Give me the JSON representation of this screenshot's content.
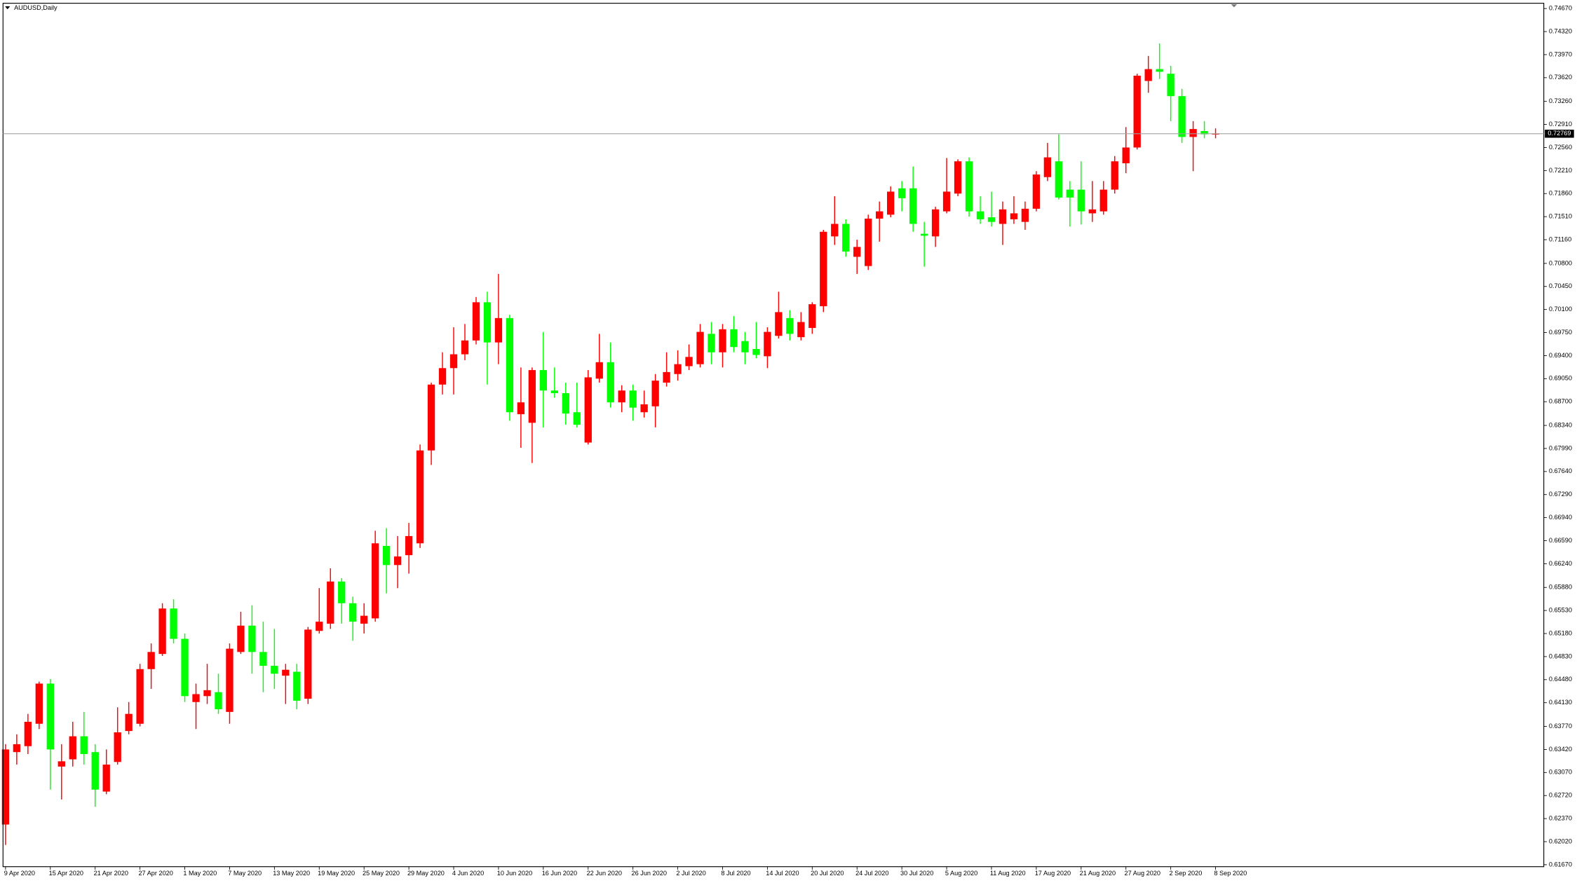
{
  "chart_data": {
    "type": "candlestick",
    "title": "AUDUSD,Daily",
    "up_color": "#ff0000",
    "down_color": "#00ff00",
    "categories": [
      "9 Apr 2020",
      null,
      null,
      null,
      "15 Apr 2020",
      null,
      null,
      null,
      "21 Apr 2020",
      null,
      null,
      null,
      "27 Apr 2020",
      null,
      null,
      null,
      "1 May 2020",
      null,
      null,
      null,
      "7 May 2020",
      null,
      null,
      null,
      "13 May 2020",
      null,
      null,
      null,
      "19 May 2020",
      null,
      null,
      null,
      "25 May 2020",
      null,
      null,
      null,
      "29 May 2020",
      null,
      null,
      null,
      "4 Jun 2020",
      null,
      null,
      null,
      "10 Jun 2020",
      null,
      null,
      null,
      "16 Jun 2020",
      null,
      null,
      null,
      "22 Jun 2020",
      null,
      null,
      null,
      "26 Jun 2020",
      null,
      null,
      null,
      "2 Jul 2020",
      null,
      null,
      null,
      "8 Jul 2020",
      null,
      null,
      null,
      "14 Jul 2020",
      null,
      null,
      null,
      "20 Jul 2020",
      null,
      null,
      null,
      "24 Jul 2020",
      null,
      null,
      null,
      "30 Jul 2020",
      null,
      null,
      null,
      "5 Aug 2020",
      null,
      null,
      null,
      "11 Aug 2020",
      null,
      null,
      null,
      "17 Aug 2020",
      null,
      null,
      null,
      "21 Aug 2020",
      null,
      null,
      null,
      "27 Aug 2020",
      null,
      null,
      null,
      "2 Sep 2020",
      null,
      null,
      null,
      "8 Sep 2020"
    ],
    "open": [
      0.6228,
      0.6338,
      0.6347,
      0.6381,
      0.6442,
      0.6316,
      0.6327,
      0.6362,
      0.6338,
      0.6278,
      0.6323,
      0.637,
      0.6381,
      0.6464,
      0.6487,
      0.6556,
      0.651,
      0.6414,
      0.6423,
      0.6429,
      0.6399,
      0.649,
      0.653,
      0.649,
      0.6469,
      0.6454,
      0.646,
      0.6419,
      0.6522,
      0.6533,
      0.6597,
      0.6564,
      0.6533,
      0.6541,
      0.6651,
      0.6622,
      0.6637,
      0.6655,
      0.6796,
      0.6896,
      0.6921,
      0.6942,
      0.6963,
      0.7021,
      0.696,
      0.6997,
      0.6851,
      0.6838,
      0.6918,
      0.6887,
      0.6883,
      0.6854,
      0.6808,
      0.6905,
      0.693,
      0.6869,
      0.6887,
      0.6854,
      0.6863,
      0.6899,
      0.6912,
      0.6924,
      0.6927,
      0.6973,
      0.6945,
      0.698,
      0.6962,
      0.695,
      0.6939,
      0.697,
      0.6997,
      0.6968,
      0.6982,
      0.7015,
      0.7121,
      0.714,
      0.709,
      0.7076,
      0.7148,
      0.7154,
      0.7194,
      0.7194,
      0.7125,
      0.7121,
      0.7159,
      0.7186,
      0.7235,
      0.7159,
      0.715,
      0.714,
      0.7147,
      0.7143,
      0.7163,
      0.7211,
      0.7235,
      0.7192,
      0.7192,
      0.7156,
      0.7159,
      0.7192,
      0.7232,
      0.7256,
      0.7357,
      0.7375,
      0.7368,
      0.7334,
      0.7272,
      0.7281,
      0.7276
    ],
    "high": [
      0.635,
      0.6365,
      0.6396,
      0.6445,
      0.6449,
      0.635,
      0.6384,
      0.6399,
      0.635,
      0.6342,
      0.6406,
      0.6414,
      0.6472,
      0.6503,
      0.6564,
      0.657,
      0.6518,
      0.6442,
      0.6472,
      0.6457,
      0.6503,
      0.6551,
      0.6561,
      0.6536,
      0.6525,
      0.6472,
      0.6472,
      0.6528,
      0.6587,
      0.6617,
      0.6602,
      0.6574,
      0.6564,
      0.6674,
      0.6678,
      0.6666,
      0.6686,
      0.6805,
      0.6899,
      0.6945,
      0.6983,
      0.6988,
      0.7029,
      0.7037,
      0.7064,
      0.7002,
      0.6922,
      0.6922,
      0.6976,
      0.6922,
      0.6899,
      0.6899,
      0.6918,
      0.6973,
      0.696,
      0.6895,
      0.6896,
      0.6887,
      0.6912,
      0.6945,
      0.6948,
      0.6957,
      0.6988,
      0.6991,
      0.6988,
      0.7,
      0.6976,
      0.6991,
      0.6983,
      0.7037,
      0.7009,
      0.7006,
      0.7021,
      0.7131,
      0.7182,
      0.7147,
      0.7116,
      0.7154,
      0.7174,
      0.7197,
      0.7205,
      0.7227,
      0.7143,
      0.7166,
      0.724,
      0.7238,
      0.7241,
      0.7182,
      0.7189,
      0.7174,
      0.7182,
      0.7174,
      0.722,
      0.7263,
      0.7276,
      0.7205,
      0.7235,
      0.7205,
      0.7205,
      0.7243,
      0.7287,
      0.7368,
      0.7395,
      0.7414,
      0.738,
      0.7345,
      0.7296,
      0.7296,
      0.7285
    ],
    "low": [
      0.6197,
      0.6319,
      0.6335,
      0.6373,
      0.6281,
      0.6266,
      0.6316,
      0.6319,
      0.6255,
      0.6274,
      0.6319,
      0.6365,
      0.6377,
      0.6434,
      0.6484,
      0.6503,
      0.6414,
      0.6373,
      0.6411,
      0.6396,
      0.6381,
      0.6487,
      0.6457,
      0.6429,
      0.6434,
      0.6411,
      0.6403,
      0.6411,
      0.6518,
      0.6525,
      0.6533,
      0.6507,
      0.6518,
      0.6536,
      0.6579,
      0.6587,
      0.6609,
      0.6648,
      0.6774,
      0.6881,
      0.6881,
      0.6933,
      0.6957,
      0.6896,
      0.6927,
      0.6841,
      0.68,
      0.6777,
      0.6831,
      0.6876,
      0.6835,
      0.6831,
      0.6805,
      0.6899,
      0.6861,
      0.6854,
      0.6841,
      0.6846,
      0.6831,
      0.6893,
      0.6902,
      0.6918,
      0.6922,
      0.6927,
      0.6922,
      0.6945,
      0.6927,
      0.6936,
      0.6921,
      0.6966,
      0.6963,
      0.6963,
      0.6973,
      0.7006,
      0.7108,
      0.709,
      0.7064,
      0.707,
      0.7113,
      0.715,
      0.7159,
      0.7128,
      0.7075,
      0.7105,
      0.7156,
      0.7182,
      0.7151,
      0.714,
      0.7136,
      0.7108,
      0.714,
      0.7131,
      0.7159,
      0.7205,
      0.7177,
      0.7136,
      0.7139,
      0.7143,
      0.7154,
      0.7186,
      0.7217,
      0.7253,
      0.7339,
      0.736,
      0.7296,
      0.7263,
      0.722,
      0.727,
      0.727
    ],
    "close": [
      0.6342,
      0.635,
      0.6384,
      0.6442,
      0.6342,
      0.6324,
      0.6362,
      0.6335,
      0.6281,
      0.6319,
      0.6368,
      0.6396,
      0.6464,
      0.649,
      0.6556,
      0.651,
      0.6423,
      0.6426,
      0.6432,
      0.6403,
      0.6495,
      0.653,
      0.649,
      0.6469,
      0.6457,
      0.6463,
      0.6416,
      0.6524,
      0.6536,
      0.6597,
      0.6564,
      0.6536,
      0.6545,
      0.6655,
      0.6622,
      0.6635,
      0.6666,
      0.6796,
      0.6896,
      0.6921,
      0.6942,
      0.6963,
      0.7021,
      0.696,
      0.6997,
      0.6854,
      0.6869,
      0.6918,
      0.6887,
      0.6883,
      0.6852,
      0.6835,
      0.6907,
      0.693,
      0.6869,
      0.6887,
      0.6861,
      0.6866,
      0.6902,
      0.6915,
      0.6927,
      0.6938,
      0.6976,
      0.6945,
      0.698,
      0.6953,
      0.6945,
      0.6941,
      0.6976,
      0.7006,
      0.6973,
      0.6991,
      0.7018,
      0.7128,
      0.714,
      0.7098,
      0.7105,
      0.7148,
      0.7159,
      0.7189,
      0.7179,
      0.714,
      0.7122,
      0.7162,
      0.7189,
      0.7235,
      0.7159,
      0.7147,
      0.7143,
      0.7162,
      0.7156,
      0.7163,
      0.7215,
      0.7241,
      0.718,
      0.718,
      0.7159,
      0.7162,
      0.7192,
      0.7235,
      0.7256,
      0.7365,
      0.7375,
      0.7371,
      0.7334,
      0.7272,
      0.7284,
      0.7276,
      0.72769
    ],
    "current_price": {
      "value": 0.72769,
      "label": "0.72769"
    },
    "ylim": [
      0.6164,
      0.7475
    ],
    "yticks": [
      {
        "value": 0.7467,
        "label": "0.74670"
      },
      {
        "value": 0.7432,
        "label": "0.74320"
      },
      {
        "value": 0.7397,
        "label": "0.73970"
      },
      {
        "value": 0.7362,
        "label": "0.73620"
      },
      {
        "value": 0.7326,
        "label": "0.73260"
      },
      {
        "value": 0.7291,
        "label": "0.72910"
      },
      {
        "value": 0.7256,
        "label": "0.72560"
      },
      {
        "value": 0.7221,
        "label": "0.72210"
      },
      {
        "value": 0.7186,
        "label": "0.71860"
      },
      {
        "value": 0.7151,
        "label": "0.71510"
      },
      {
        "value": 0.7116,
        "label": "0.71160"
      },
      {
        "value": 0.708,
        "label": "0.70800"
      },
      {
        "value": 0.7045,
        "label": "0.70450"
      },
      {
        "value": 0.701,
        "label": "0.70100"
      },
      {
        "value": 0.6975,
        "label": "0.69750"
      },
      {
        "value": 0.694,
        "label": "0.69400"
      },
      {
        "value": 0.6905,
        "label": "0.69050"
      },
      {
        "value": 0.687,
        "label": "0.68700"
      },
      {
        "value": 0.6834,
        "label": "0.68340"
      },
      {
        "value": 0.6799,
        "label": "0.67990"
      },
      {
        "value": 0.6764,
        "label": "0.67640"
      },
      {
        "value": 0.6729,
        "label": "0.67290"
      },
      {
        "value": 0.6694,
        "label": "0.66940"
      },
      {
        "value": 0.6659,
        "label": "0.66590"
      },
      {
        "value": 0.6624,
        "label": "0.66240"
      },
      {
        "value": 0.6588,
        "label": "0.65880"
      },
      {
        "value": 0.6553,
        "label": "0.65530"
      },
      {
        "value": 0.6518,
        "label": "0.65180"
      },
      {
        "value": 0.6483,
        "label": "0.64830"
      },
      {
        "value": 0.6448,
        "label": "0.64480"
      },
      {
        "value": 0.6413,
        "label": "0.64130"
      },
      {
        "value": 0.6377,
        "label": "0.63770"
      },
      {
        "value": 0.6342,
        "label": "0.63420"
      },
      {
        "value": 0.6307,
        "label": "0.63070"
      },
      {
        "value": 0.6272,
        "label": "0.62720"
      },
      {
        "value": 0.6237,
        "label": "0.62370"
      },
      {
        "value": 0.6202,
        "label": "0.62020"
      },
      {
        "value": 0.6167,
        "label": "0.61670"
      }
    ]
  }
}
